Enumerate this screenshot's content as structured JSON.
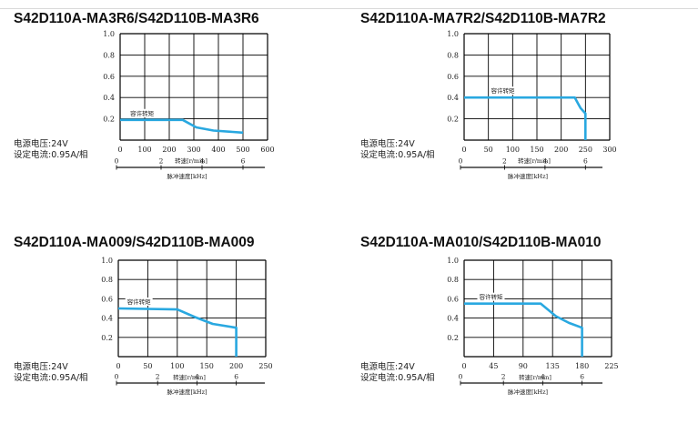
{
  "charts": [
    {
      "title": "S42D110A-MA3R6/S42D110B-MA3R6",
      "voltage": "电源电压:24V",
      "current": "设定电流:0.95A/相",
      "chart_data": {
        "type": "line",
        "curve_label": "容许转矩",
        "xlabel": "转速[r/min]",
        "x2label": "脉冲速度[kHz]",
        "y_ticks": [
          "1.0",
          "0.8",
          "0.6",
          "0.4",
          "0.2"
        ],
        "x_ticks": [
          "0",
          "100",
          "200",
          "300",
          "400",
          "500",
          "600"
        ],
        "x2_ticks": [
          "0",
          "2",
          "4",
          "6"
        ],
        "xlim": [
          0,
          600
        ],
        "ylim": [
          0,
          1.0
        ],
        "x2_max_khz": 6,
        "x2_max_rpm": 500,
        "x": [
          0,
          255,
          310,
          380,
          500
        ],
        "y": [
          0.19,
          0.19,
          0.12,
          0.09,
          0.07
        ],
        "drop_to_zero_at": null,
        "color": "#29a8e0"
      }
    },
    {
      "title": "S42D110A-MA7R2/S42D110B-MA7R2",
      "voltage": "电源电压:24V",
      "current": "设定电流:0.95A/相",
      "chart_data": {
        "type": "line",
        "curve_label": "容许转矩",
        "xlabel": "转速[r/min]",
        "x2label": "脉冲速度[kHz]",
        "y_ticks": [
          "1.0",
          "0.8",
          "0.6",
          "0.4",
          "0.2"
        ],
        "x_ticks": [
          "0",
          "50",
          "100",
          "150",
          "200",
          "250",
          "300"
        ],
        "x2_ticks": [
          "0",
          "2",
          "4",
          "6"
        ],
        "xlim": [
          0,
          300
        ],
        "ylim": [
          0,
          1.0
        ],
        "x2_max_khz": 6,
        "x2_max_rpm": 250,
        "x": [
          0,
          228,
          240,
          250
        ],
        "y": [
          0.4,
          0.4,
          0.3,
          0.25
        ],
        "drop_to_zero_at": 250,
        "color": "#29a8e0"
      }
    },
    {
      "title": "S42D110A-MA009/S42D110B-MA009",
      "voltage": "电源电压:24V",
      "current": "设定电流:0.95A/相",
      "chart_data": {
        "type": "line",
        "curve_label": "容许转矩",
        "xlabel": "转速[r/min]",
        "x2label": "脉冲速度[kHz]",
        "y_ticks": [
          "1.0",
          "0.8",
          "0.6",
          "0.4",
          "0.2"
        ],
        "x_ticks": [
          "0",
          "50",
          "100",
          "150",
          "200",
          "250"
        ],
        "x2_ticks": [
          "0",
          "2",
          "4",
          "6"
        ],
        "xlim": [
          0,
          250
        ],
        "ylim": [
          0,
          1.0
        ],
        "x2_max_khz": 6,
        "x2_max_rpm": 200,
        "x": [
          0,
          100,
          130,
          160,
          200
        ],
        "y": [
          0.5,
          0.49,
          0.41,
          0.34,
          0.3
        ],
        "drop_to_zero_at": 200,
        "color": "#29a8e0"
      }
    },
    {
      "title": "S42D110A-MA010/S42D110B-MA010",
      "voltage": "电源电压:24V",
      "current": "设定电流:0.95A/相",
      "chart_data": {
        "type": "line",
        "curve_label": "容许转矩",
        "xlabel": "转速[r/min]",
        "x2label": "脉冲速度[kHz]",
        "y_ticks": [
          "1.0",
          "0.8",
          "0.6",
          "0.4",
          "0.2"
        ],
        "x_ticks": [
          "0",
          "45",
          "90",
          "135",
          "180",
          "225"
        ],
        "x2_ticks": [
          "0",
          "2",
          "4",
          "6"
        ],
        "xlim": [
          0,
          225
        ],
        "ylim": [
          0,
          1.0
        ],
        "x2_max_khz": 6,
        "x2_max_rpm": 180,
        "x": [
          0,
          117,
          140,
          160,
          180
        ],
        "y": [
          0.55,
          0.55,
          0.42,
          0.35,
          0.3
        ],
        "drop_to_zero_at": 180,
        "color": "#29a8e0"
      }
    }
  ]
}
